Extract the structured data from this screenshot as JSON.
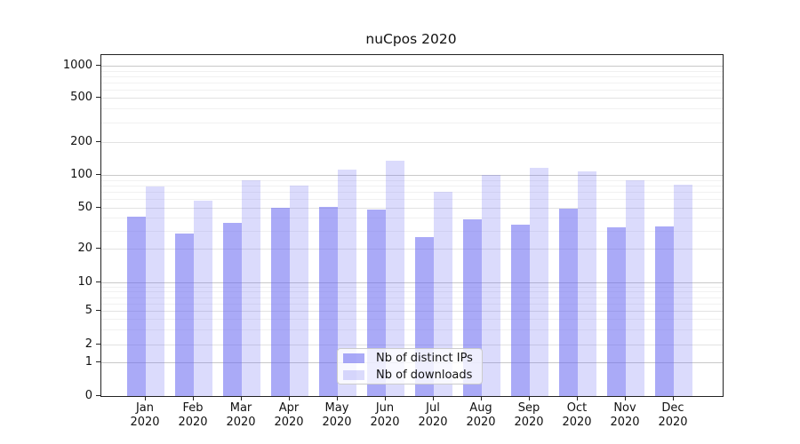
{
  "chart_data": {
    "type": "bar",
    "title": "nuCpos 2020",
    "categories": [
      "Jan",
      "Feb",
      "Mar",
      "Apr",
      "May",
      "Jun",
      "Jul",
      "Aug",
      "Sep",
      "Oct",
      "Nov",
      "Dec"
    ],
    "category_year": "2020",
    "series": [
      {
        "name": "Nb of distinct IPs",
        "color": "#6464f0",
        "alpha": 0.55,
        "values": [
          41,
          28,
          36,
          50,
          51,
          48,
          26,
          39,
          34,
          49,
          32,
          33
        ]
      },
      {
        "name": "Nb of downloads",
        "color": "#6464f0",
        "alpha": 0.23,
        "values": [
          78,
          58,
          90,
          80,
          112,
          135,
          70,
          100,
          116,
          108,
          90,
          82
        ]
      }
    ],
    "xlabel": "",
    "ylabel": "",
    "y_scale": "symlog",
    "y_ticks_labeled": [
      0,
      1,
      2,
      5,
      10,
      20,
      50,
      100,
      200,
      500,
      1000
    ],
    "y_ticks_mid": [
      2,
      5,
      20,
      50,
      200,
      500
    ],
    "y_ticks_minor": [
      3,
      4,
      6,
      7,
      8,
      9,
      30,
      40,
      60,
      70,
      80,
      90,
      300,
      400,
      600,
      700,
      800,
      900
    ],
    "ylim": [
      0,
      1300
    ],
    "grid": true,
    "legend": {
      "position": "lower center",
      "entries": [
        "Nb of distinct IPs",
        "Nb of downloads"
      ]
    }
  }
}
